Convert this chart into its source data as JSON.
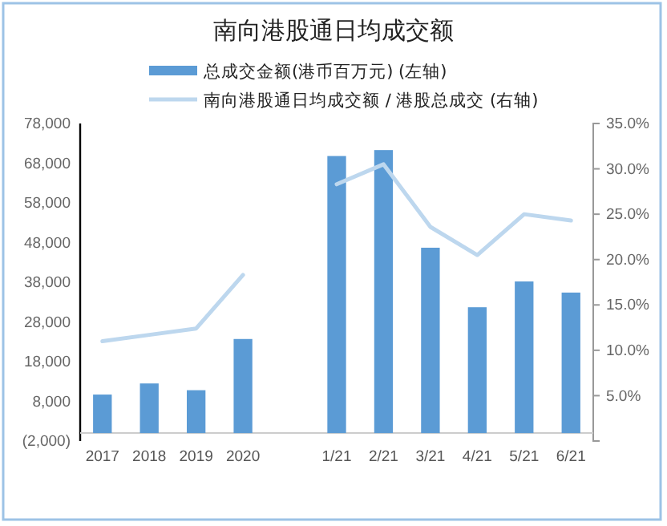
{
  "chart_data": {
    "type": "bar",
    "title": "南向港股通日均成交额",
    "categories": [
      "2017",
      "2018",
      "2019",
      "2020",
      null,
      "1/21",
      "2/21",
      "3/21",
      "4/21",
      "5/21",
      "6/21"
    ],
    "series": [
      {
        "name": "总成交金额(港币百万元) (左轴)",
        "color": "#5b9bd5",
        "values": [
          9700,
          12500,
          10800,
          23700,
          null,
          69800,
          71300,
          46700,
          31700,
          38200,
          35400
        ]
      },
      {
        "name": "南向港股通日均成交额 / 港股总成交 (右轴)",
        "type": "line",
        "axis": "y2",
        "color": "#bdd7ee",
        "values": [
          11.0,
          11.7,
          12.4,
          18.3,
          null,
          28.3,
          30.5,
          23.6,
          20.5,
          25.0,
          24.3
        ]
      }
    ],
    "ylim": [
      -2000,
      78000
    ],
    "yticks": [
      {
        "value": -2000,
        "label": "(2,000)"
      },
      {
        "value": 8000,
        "label": "8,000"
      },
      {
        "value": 18000,
        "label": "18,000"
      },
      {
        "value": 28000,
        "label": "28,000"
      },
      {
        "value": 38000,
        "label": "38,000"
      },
      {
        "value": 48000,
        "label": "48,000"
      },
      {
        "value": 58000,
        "label": "58,000"
      },
      {
        "value": 68000,
        "label": "68,000"
      },
      {
        "value": 78000,
        "label": "78,000"
      }
    ],
    "y2lim": [
      0,
      35
    ],
    "y2ticks": [
      {
        "value": 0,
        "label": null
      },
      {
        "value": 5,
        "label": "5.0%"
      },
      {
        "value": 10,
        "label": "10.0%"
      },
      {
        "value": 15,
        "label": "15.0%"
      },
      {
        "value": 20,
        "label": "20.0%"
      },
      {
        "value": 25,
        "label": "25.0%"
      },
      {
        "value": 30,
        "label": "30.0%"
      },
      {
        "value": 35,
        "label": "35.0%"
      }
    ],
    "legend": "top",
    "grid": false
  }
}
